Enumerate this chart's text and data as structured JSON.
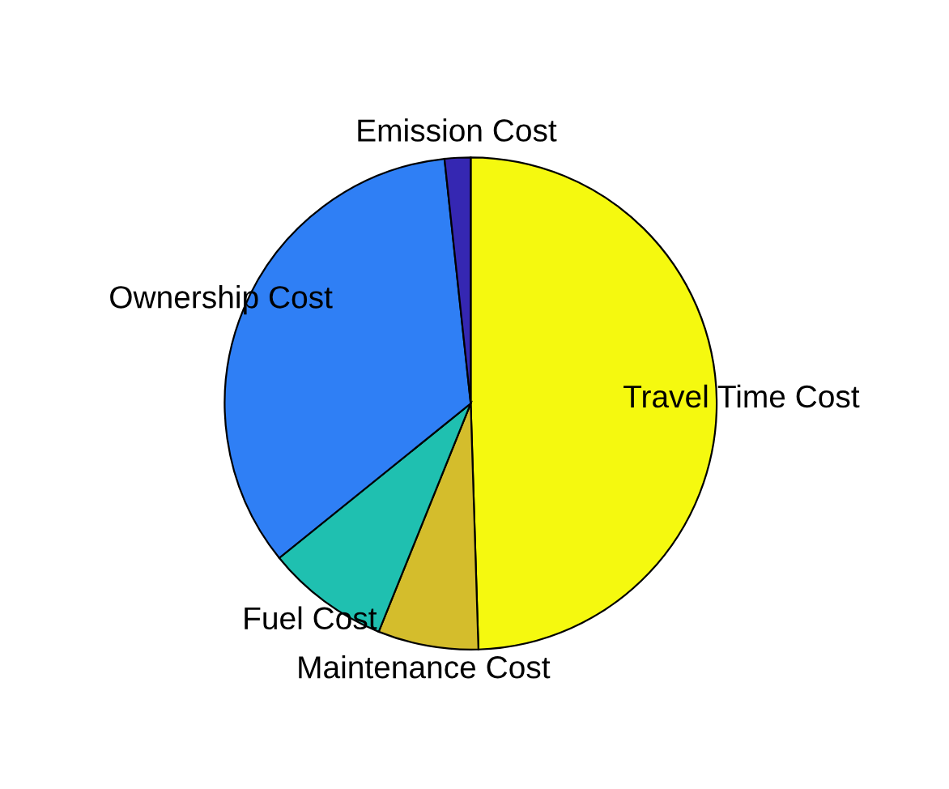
{
  "chart_data": {
    "type": "pie",
    "categories": [
      "Travel Time Cost",
      "Maintenance Cost",
      "Fuel Cost",
      "Ownership Cost",
      "Emission Cost"
    ],
    "values": [
      49.5,
      6.6,
      8.1,
      34.1,
      1.7
    ],
    "colors": [
      "#f5f90f",
      "#d4bd2c",
      "#1fc0b0",
      "#2f7ff5",
      "#3527b2"
    ]
  }
}
